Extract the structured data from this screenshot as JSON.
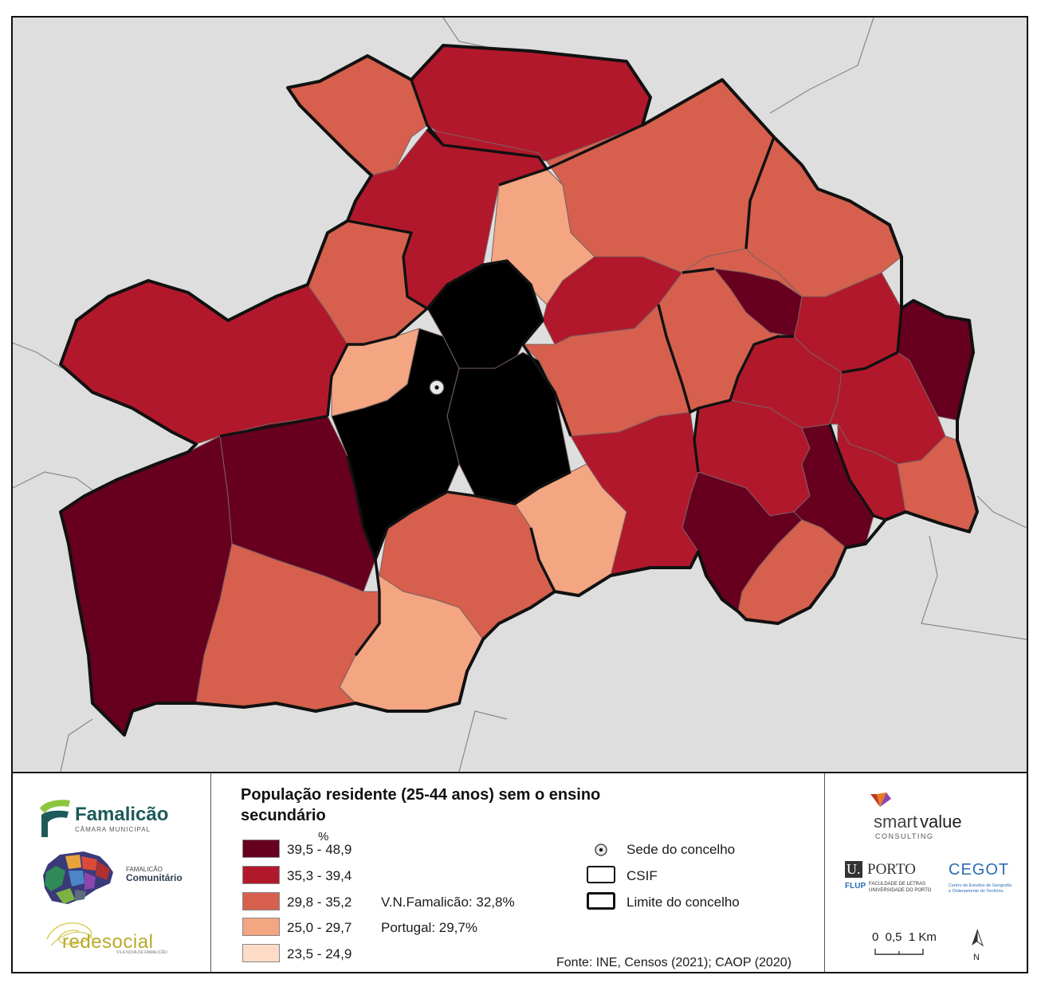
{
  "legend": {
    "title": "População residente (25-44 anos) sem o ensino secundário",
    "unit": "%",
    "classes": [
      {
        "label": "39,5 - 48,9",
        "color": "#67001f"
      },
      {
        "label": "35,3 - 39,4",
        "color": "#b2182b"
      },
      {
        "label": "29,8 - 35,2",
        "color": "#d6604d"
      },
      {
        "label": "25,0 - 29,7",
        "color": "#f4a582"
      },
      {
        "label": "23,5 - 24,9",
        "color": "#fddbc7"
      }
    ],
    "stats": {
      "municipality": "V.N.Famalicão: 32,8%",
      "country": "Portugal: 29,7%"
    },
    "symbols": {
      "seat": "Sede do concelho",
      "csif": "CSIF",
      "boundary": "Limite do concelho"
    },
    "source": "Fonte: INE, Censos (2021); CAOP (2020)"
  },
  "logos": {
    "famalicao_name": "Famalicão",
    "famalicao_sub": "CÂMARA MUNICIPAL",
    "comunitario_1": "FAMALICÃO",
    "comunitario_2": "Comunitário",
    "redesocial": "redesocial",
    "redesocial_sub": "VILA NOVA DE FAMALICÃO",
    "smart": "smart",
    "value": "value",
    "consulting": "CONSULTING",
    "uporto_u": "U.",
    "uporto": "PORTO",
    "flup": "FLUP",
    "flup_text_1": "FACULDADE DE LETRAS",
    "flup_text_2": "UNIVERSIDADE DO PORTO",
    "cegot": "CEGOT",
    "cegot_text_1": "Centro de Estudos de Geografia",
    "cegot_text_2": "e Ordenamento do Território"
  },
  "scale": {
    "label": "0  0,5  1 Km"
  },
  "north": {
    "label": "N"
  },
  "colors": {
    "background": "#dedede",
    "boundary": "#111111"
  }
}
